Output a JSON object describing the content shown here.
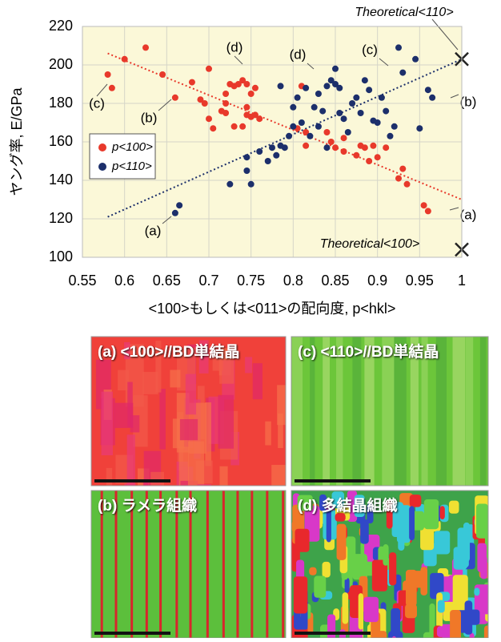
{
  "chart_data": {
    "type": "scatter",
    "y_label": "ヤング率, E/GPa",
    "x_label": "<100>もしくは<011>の配向度, p<hkl>",
    "xlim": [
      0.55,
      1
    ],
    "xticks": [
      0.55,
      0.6,
      0.65,
      0.7,
      0.75,
      0.8,
      0.85,
      0.9,
      0.95,
      1
    ],
    "ylim": [
      100,
      220
    ],
    "yticks": [
      100,
      120,
      140,
      160,
      180,
      200,
      220
    ],
    "grid": true,
    "background": "#fbf8d8",
    "legend": "left",
    "series": [
      {
        "name": "p<100>",
        "color": "#e8392b",
        "x": [
          0.58,
          0.585,
          0.6,
          0.625,
          0.645,
          0.66,
          0.68,
          0.69,
          0.695,
          0.7,
          0.7,
          0.705,
          0.715,
          0.72,
          0.72,
          0.725,
          0.73,
          0.735,
          0.74,
          0.745,
          0.745,
          0.75,
          0.75,
          0.755,
          0.755,
          0.76,
          0.74,
          0.73,
          0.72,
          0.745,
          0.81,
          0.815,
          0.815,
          0.805,
          0.84,
          0.845,
          0.85,
          0.86,
          0.86,
          0.875,
          0.88,
          0.885,
          0.89,
          0.895,
          0.9,
          0.91,
          0.925,
          0.93,
          0.935,
          0.955,
          0.96
        ],
        "values": [
          195,
          188,
          203,
          209,
          195,
          183,
          191,
          182,
          180,
          198,
          172,
          167,
          176,
          180,
          185,
          190,
          189,
          190,
          192,
          190,
          178,
          185,
          173,
          188,
          174,
          172,
          168,
          168,
          175,
          174,
          189,
          165,
          158,
          167,
          165,
          160,
          157,
          155,
          162,
          153,
          158,
          157,
          150,
          158,
          152,
          157,
          141,
          146,
          138,
          127,
          124
        ]
      },
      {
        "name": "p<110>",
        "color": "#1c2f6b",
        "x": [
          0.66,
          0.665,
          0.725,
          0.745,
          0.745,
          0.75,
          0.76,
          0.77,
          0.775,
          0.78,
          0.785,
          0.79,
          0.785,
          0.795,
          0.8,
          0.8,
          0.805,
          0.81,
          0.815,
          0.825,
          0.83,
          0.835,
          0.84,
          0.84,
          0.845,
          0.85,
          0.85,
          0.855,
          0.855,
          0.86,
          0.865,
          0.87,
          0.875,
          0.88,
          0.885,
          0.89,
          0.895,
          0.9,
          0.905,
          0.91,
          0.915,
          0.92,
          0.925,
          0.93,
          0.945,
          0.95,
          0.96,
          0.965,
          0.82,
          0.83
        ],
        "values": [
          123,
          127,
          138,
          152,
          145,
          138,
          155,
          150,
          157,
          153,
          158,
          157,
          189,
          163,
          168,
          178,
          183,
          170,
          188,
          178,
          185,
          176,
          189,
          157,
          192,
          190,
          198,
          188,
          175,
          172,
          165,
          180,
          183,
          175,
          192,
          187,
          171,
          170,
          183,
          176,
          163,
          168,
          209,
          196,
          203,
          167,
          187,
          183,
          163,
          168
        ]
      }
    ],
    "trendlines": [
      {
        "color": "#e8392b",
        "x": [
          0.58,
          1
        ],
        "y": [
          206,
          130
        ]
      },
      {
        "color": "#1c2f6b",
        "x": [
          0.58,
          1
        ],
        "y": [
          121,
          203
        ]
      }
    ],
    "theoretical": {
      "x": [
        1,
        1
      ],
      "y": [
        203,
        104
      ],
      "labels": [
        "Theoretical<110>",
        "Theoretical<100>"
      ]
    },
    "annotations": [
      "(c)",
      "(b)",
      "(d)",
      "(d)",
      "(c)",
      "(b)",
      "(a)",
      "(a)"
    ]
  },
  "micrographs": [
    {
      "title": "(a) <100>//BD単結晶"
    },
    {
      "title": "(c) <110>//BD単結晶"
    },
    {
      "title": "(b) ラメラ組織"
    },
    {
      "title": "(d) 多結晶組織"
    }
  ]
}
